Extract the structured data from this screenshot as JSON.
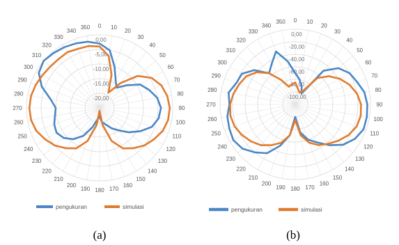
{
  "chart_data": [
    {
      "type": "polar-line",
      "caption": "(a)",
      "radial_ticks": [
        "0,00",
        "-5,00",
        "-10,00",
        "-15,00",
        "-20,00"
      ],
      "rlim": [
        -25,
        0
      ],
      "angles": [
        "0",
        "10",
        "20",
        "30",
        "40",
        "50",
        "60",
        "70",
        "80",
        "90",
        "100",
        "110",
        "120",
        "130",
        "140",
        "150",
        "160",
        "170",
        "180",
        "190",
        "200",
        "210",
        "220",
        "230",
        "240",
        "250",
        "260",
        "270",
        "280",
        "290",
        "300",
        "310",
        "320",
        "330",
        "340",
        "350"
      ],
      "theta": [
        0,
        10,
        20,
        30,
        40,
        50,
        60,
        70,
        80,
        90,
        100,
        110,
        120,
        130,
        140,
        150,
        160,
        170,
        180,
        190,
        200,
        210,
        220,
        230,
        240,
        250,
        260,
        270,
        280,
        290,
        300,
        310,
        320,
        330,
        340,
        350
      ],
      "legend_position": "bottom",
      "colors": {
        "pengukuran": "#4a86c6",
        "simulasi": "#e07b2e"
      },
      "series": [
        {
          "name": "pengukuran",
          "values": [
            -3,
            -5,
            -10,
            -14,
            -16,
            -13,
            -9,
            -7,
            -5,
            -4,
            -4.5,
            -6,
            -9,
            -12,
            -15,
            -17,
            -19,
            -20,
            -22,
            -21,
            -18,
            -14,
            -11,
            -9,
            -8,
            -8.5,
            -9.5,
            -10,
            -8,
            -4,
            -1,
            0,
            -0.5,
            -1,
            -1.5,
            -2
          ]
        },
        {
          "name": "simulasi",
          "values": [
            -4,
            -7,
            -13,
            -19,
            -14,
            -8,
            -4.5,
            -2.5,
            -1.5,
            -1,
            -1.2,
            -2,
            -3.5,
            -5,
            -7,
            -9,
            -13,
            -19,
            -24,
            -19,
            -13,
            -9,
            -7,
            -5,
            -3.5,
            -2,
            -1.2,
            -1,
            -1.2,
            -1.8,
            -2.5,
            -3,
            -3.2,
            -3,
            -3.5,
            -3.5
          ]
        }
      ]
    },
    {
      "type": "polar-line",
      "caption": "(b)",
      "radial_ticks": [
        "0,00",
        "-20,00",
        "-40,00",
        "-60,00",
        "-80,00",
        "-100,00"
      ],
      "rlim": [
        -120,
        0
      ],
      "angles": [
        "0",
        "10",
        "20",
        "30",
        "40",
        "50",
        "60",
        "70",
        "80",
        "90",
        "100",
        "110",
        "120",
        "130",
        "140",
        "150",
        "160",
        "170",
        "180",
        "190",
        "200",
        "210",
        "220",
        "230",
        "240",
        "250",
        "260",
        "270",
        "280",
        "290",
        "300",
        "310",
        "320",
        "330",
        "340",
        "350"
      ],
      "theta": [
        0,
        10,
        20,
        30,
        40,
        50,
        60,
        70,
        80,
        90,
        100,
        110,
        120,
        130,
        140,
        150,
        160,
        170,
        180,
        190,
        200,
        210,
        220,
        230,
        240,
        250,
        260,
        270,
        280,
        290,
        300,
        310,
        320,
        330,
        340,
        350
      ],
      "legend_position": "bottom",
      "colors": {
        "pengukuran": "#4a86c6",
        "simulasi": "#e07b2e"
      },
      "series": [
        {
          "name": "pengukuran",
          "values": [
            -70,
            -80,
            -90,
            -100,
            -50,
            -30,
            -20,
            -15,
            -8,
            -5,
            -4,
            -4,
            -10,
            -20,
            -35,
            -50,
            -60,
            -75,
            -100,
            -70,
            -50,
            -30,
            -20,
            -10,
            -6,
            -8,
            -10,
            -15,
            -12,
            -20,
            -22,
            -35,
            -55,
            -45,
            -30,
            -50
          ]
        },
        {
          "name": "simulasi",
          "values": [
            -85,
            -95,
            -100,
            -95,
            -65,
            -50,
            -38,
            -28,
            -20,
            -15,
            -14,
            -16,
            -22,
            -30,
            -38,
            -45,
            -55,
            -70,
            -95,
            -70,
            -55,
            -45,
            -35,
            -28,
            -22,
            -17,
            -15,
            -16,
            -20,
            -25,
            -30,
            -40,
            -55,
            -75,
            -90,
            -88
          ]
        }
      ]
    }
  ]
}
